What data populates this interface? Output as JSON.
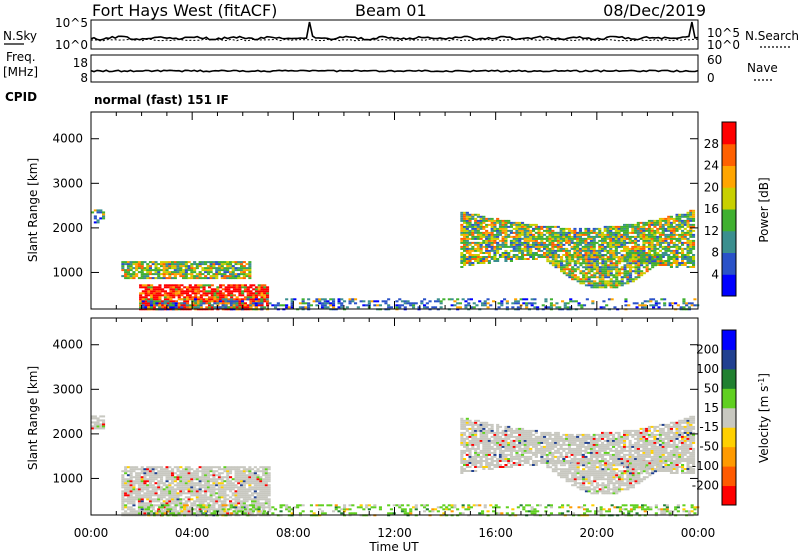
{
  "header": {
    "title": "Fort Hays West (fitACF)",
    "beam": "Beam 01",
    "date": "08/Dec/2019"
  },
  "strip": {
    "nsky_label": "N.Sky",
    "nsearch_label": "N.Search",
    "noise_ticks": [
      "10^5",
      "10^0"
    ],
    "freq_label": "Freq.",
    "freq_unit": "[MHz]",
    "freq_ticks": [
      "18",
      "8"
    ],
    "nave_label": "Nave",
    "nave_ticks": [
      "60",
      "0"
    ],
    "cpid_label": "CPID",
    "cpid_text": "normal (fast) 151 IF"
  },
  "colors": {
    "power": [
      "#0000ff",
      "#2a52c8",
      "#3b8f8f",
      "#40b030",
      "#c8d000",
      "#ffa500",
      "#ff6000",
      "#ff0000"
    ],
    "velocity": [
      "#ff0000",
      "#ff5a00",
      "#ff9a00",
      "#ffd000",
      "#c8c8c0",
      "#60d020",
      "#208030",
      "#204090",
      "#0000ff"
    ]
  },
  "chart_data": [
    {
      "type": "heatmap",
      "panel": "power",
      "ylabel": "Slant Range [km]",
      "y_ticks": [
        1000,
        2000,
        3000,
        4000
      ],
      "ylim": [
        180,
        4600
      ],
      "xlim": [
        0,
        24
      ],
      "x_ticks": [
        "00:00",
        "04:00",
        "08:00",
        "12:00",
        "16:00",
        "20:00",
        "00:00"
      ],
      "colorbar": {
        "label": "Power [dB]",
        "ticks": [
          4,
          8,
          12,
          16,
          20,
          24,
          28
        ],
        "range": [
          0,
          32
        ]
      },
      "regions": [
        {
          "t": [
            1.9,
            7.0
          ],
          "r": [
            150,
            700
          ],
          "level": "high"
        },
        {
          "t": [
            1.2,
            6.3
          ],
          "r": [
            850,
            1250
          ],
          "level": "mid"
        },
        {
          "t": [
            0.0,
            0.5
          ],
          "r": [
            2100,
            2400
          ],
          "level": "low"
        },
        {
          "t": [
            14.6,
            23.8
          ],
          "r": [
            1100,
            2400
          ],
          "level": "mid"
        },
        {
          "t": [
            18.0,
            22.5
          ],
          "r": [
            600,
            1400
          ],
          "level": "mid"
        },
        {
          "t": [
            2.0,
            24.0
          ],
          "r": [
            150,
            420
          ],
          "level": "low"
        }
      ]
    },
    {
      "type": "heatmap",
      "panel": "velocity",
      "ylabel": "Slant Range [km]",
      "y_ticks": [
        1000,
        2000,
        3000,
        4000
      ],
      "ylim": [
        180,
        4600
      ],
      "xlim": [
        0,
        24
      ],
      "x_ticks": [
        "00:00",
        "04:00",
        "08:00",
        "12:00",
        "16:00",
        "20:00",
        "00:00"
      ],
      "xlabel": "Time UT",
      "colorbar": {
        "label": "Velocity [m s^-1]",
        "ticks": [
          -200,
          -100,
          -50,
          -15,
          15,
          50,
          100,
          200
        ]
      },
      "regions": [
        {
          "t": [
            1.2,
            7.0
          ],
          "r": [
            150,
            1250
          ],
          "level": "ground"
        },
        {
          "t": [
            0.0,
            0.5
          ],
          "r": [
            2100,
            2400
          ],
          "level": "ground"
        },
        {
          "t": [
            14.6,
            23.8
          ],
          "r": [
            1100,
            2400
          ],
          "level": "ground"
        },
        {
          "t": [
            18.0,
            22.5
          ],
          "r": [
            600,
            1400
          ],
          "level": "ground"
        },
        {
          "t": [
            2.0,
            24.0
          ],
          "r": [
            150,
            420
          ],
          "level": "green"
        }
      ]
    }
  ]
}
